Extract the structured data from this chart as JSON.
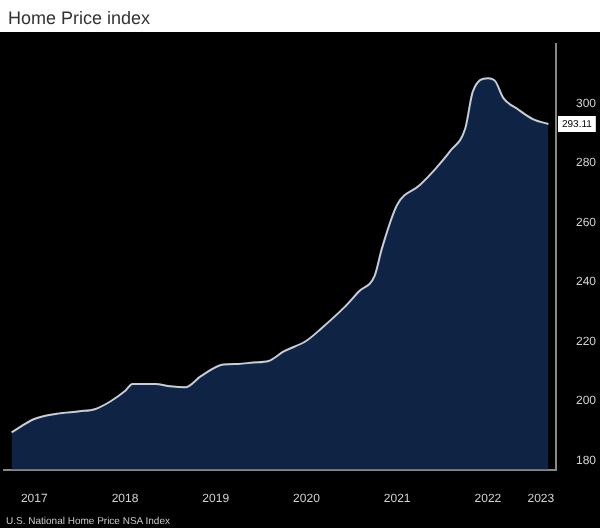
{
  "chart_data": {
    "type": "area",
    "title": "Home Price index",
    "x": [
      "2017-04",
      "2017-07",
      "2017-10",
      "2018-01",
      "2018-03",
      "2018-05",
      "2018-07",
      "2018-08",
      "2018-11",
      "2019-01",
      "2019-03",
      "2019-05",
      "2019-08",
      "2019-10",
      "2019-12",
      "2020-02",
      "2020-04",
      "2020-07",
      "2020-09",
      "2020-12",
      "2021-02",
      "2021-04",
      "2021-05",
      "2021-07",
      "2021-10",
      "2021-12",
      "2022-02",
      "2022-04",
      "2022-05",
      "2022-07",
      "2022-08",
      "2022-09",
      "2022-11",
      "2023-01",
      "2023-03"
    ],
    "series": [
      {
        "color": "#c8cdd6",
        "values": [
          189.5,
          194,
          195.8,
          196.6,
          197.3,
          199.8,
          203.4,
          205.8,
          205.8,
          205,
          204.7,
          208.3,
          212.3,
          212.5,
          213,
          213.5,
          216.7,
          220.3,
          224.5,
          231.5,
          237,
          242,
          251.5,
          266,
          272.6,
          277.9,
          284,
          291.6,
          304,
          308.5,
          307.4,
          302,
          298,
          294.7,
          293.11
        ]
      }
    ],
    "xlim": [
      "2017-03",
      "2023-04"
    ],
    "xticks": [
      {
        "value": "2017-07",
        "label": "2017"
      },
      {
        "value": "2018-07",
        "label": "2018"
      },
      {
        "value": "2019-07",
        "label": "2019"
      },
      {
        "value": "2020-07",
        "label": "2020"
      },
      {
        "value": "2021-07",
        "label": "2021"
      },
      {
        "value": "2022-07",
        "label": "2022"
      },
      {
        "value": "2023-02",
        "label": "2023"
      }
    ],
    "ylim": [
      177,
      320
    ],
    "yticks": [
      180,
      200,
      220,
      240,
      260,
      280,
      300
    ],
    "grid": false,
    "legend": false,
    "marker": "none",
    "line_style": "solid",
    "annotations": [
      {
        "text": "293.11",
        "y": 293.11
      },
      "U.S. National Home Price NSA Index"
    ]
  }
}
